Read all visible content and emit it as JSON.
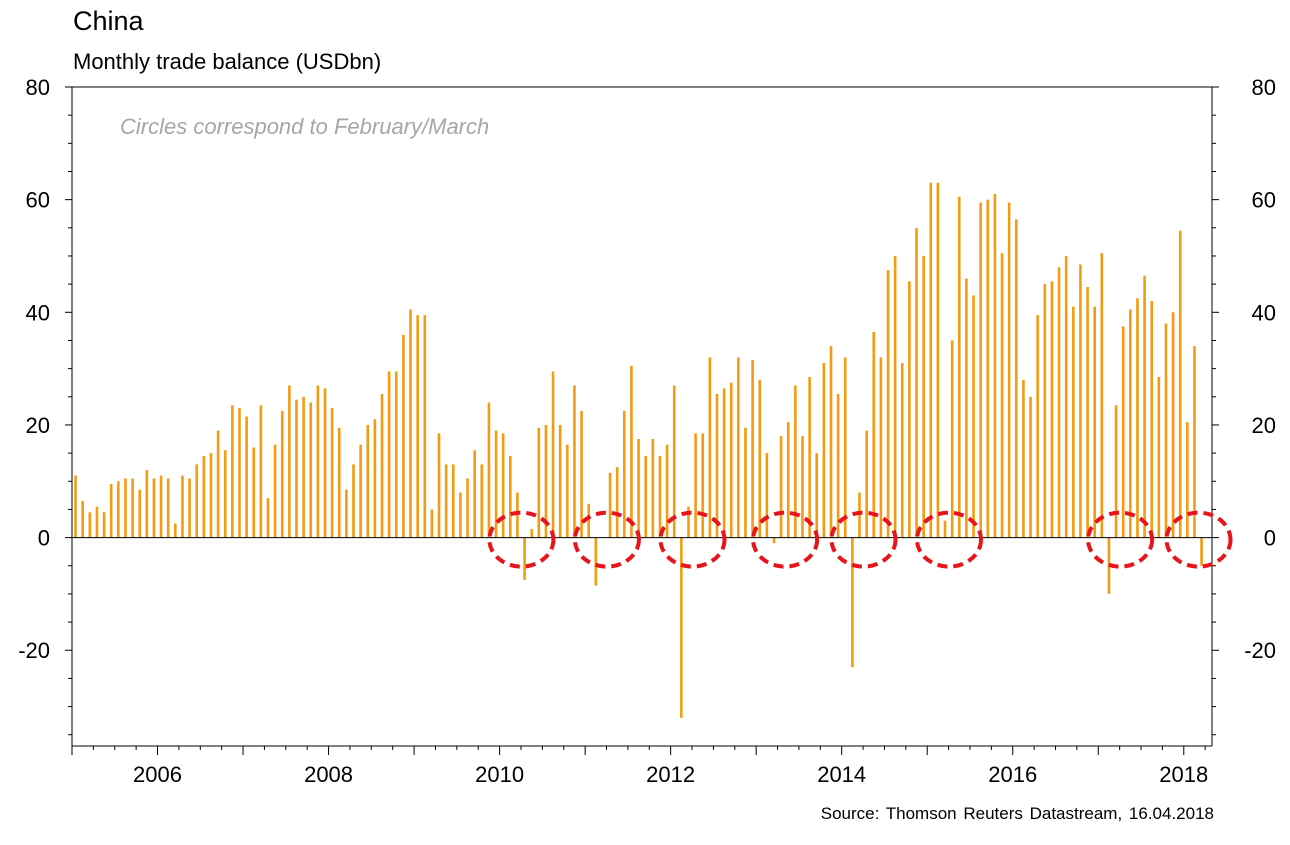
{
  "header": {
    "title": "China",
    "subtitle": "Monthly trade balance (USDbn)"
  },
  "footer": {
    "source": "Source: Thomson Reuters Datastream, 16.04.2018"
  },
  "colors": {
    "bar": "#f39c12",
    "circle": "#e8141b",
    "axis": "#000000",
    "note": "#a6a6a6"
  },
  "chart_data": {
    "type": "bar",
    "title": "China",
    "subtitle": "Monthly trade balance (USDbn)",
    "annotation": "Circles correspond to February/March",
    "xlabel": "",
    "ylabel": "",
    "x_start": "2005-01",
    "xlim": [
      2005,
      2018.33
    ],
    "ylim": [
      -37,
      80
    ],
    "yticks": [
      -20,
      0,
      20,
      40,
      60,
      80
    ],
    "ytick_labels": [
      "-20",
      "0",
      "20",
      "40",
      "60",
      "80"
    ],
    "xticks": [
      2006,
      2008,
      2010,
      2012,
      2014,
      2016,
      2018
    ],
    "xtick_labels": [
      "2006",
      "2008",
      "2010",
      "2012",
      "2014",
      "2016",
      "2018"
    ],
    "grid": false,
    "right_axis": true,
    "series": [
      {
        "values": [
          11,
          6.5,
          4.5,
          5.5,
          4.5,
          9.5,
          10,
          10.5,
          10.5,
          8.5,
          12,
          10.5,
          11,
          10.5,
          2.5,
          11,
          10.5,
          13,
          14.5,
          15,
          19,
          15.5,
          23.5,
          23,
          21.5,
          16,
          23.5,
          7,
          16.5,
          22.5,
          27,
          24.5,
          25,
          24,
          27,
          26.5,
          23,
          19.5,
          8.5,
          13,
          16.5,
          20,
          21,
          25.5,
          29.5,
          29.5,
          36,
          40.5,
          39.5,
          39.5,
          5,
          18.5,
          13,
          13,
          8,
          10.5,
          15.5,
          13,
          24,
          19,
          18.5,
          14.5,
          8,
          -7.5,
          1.5,
          19.5,
          20,
          29.5,
          20,
          16.5,
          27,
          22.5,
          6,
          -8.5,
          0,
          11.5,
          12.5,
          22.5,
          30.5,
          17.5,
          14.5,
          17.5,
          14.5,
          16.5,
          27,
          -32,
          5.5,
          18.5,
          18.5,
          32,
          25.5,
          26.5,
          27.5,
          32,
          19.5,
          31.5,
          28,
          15,
          -1,
          18,
          20.5,
          27,
          18,
          28.5,
          15,
          31,
          34,
          25.5,
          32,
          -23,
          8,
          19,
          36.5,
          32,
          47.5,
          50,
          31,
          45.5,
          55,
          50,
          63,
          63,
          3,
          35,
          60.5,
          46,
          43,
          59.5,
          60,
          61,
          50.5,
          59.5,
          56.5,
          28,
          25,
          39.5,
          45,
          45.5,
          48,
          50,
          41,
          48.5,
          44.5,
          41,
          50.5,
          -10,
          23.5,
          37.5,
          40.5,
          42.5,
          46.5,
          42,
          28.5,
          38,
          40,
          54.5,
          20.5,
          34,
          -5
        ]
      }
    ],
    "circles_at": [
      "2010-03",
      "2011-03",
      "2012-03",
      "2013-04",
      "2014-03",
      "2015-03",
      "2017-03",
      "2018-02"
    ]
  }
}
